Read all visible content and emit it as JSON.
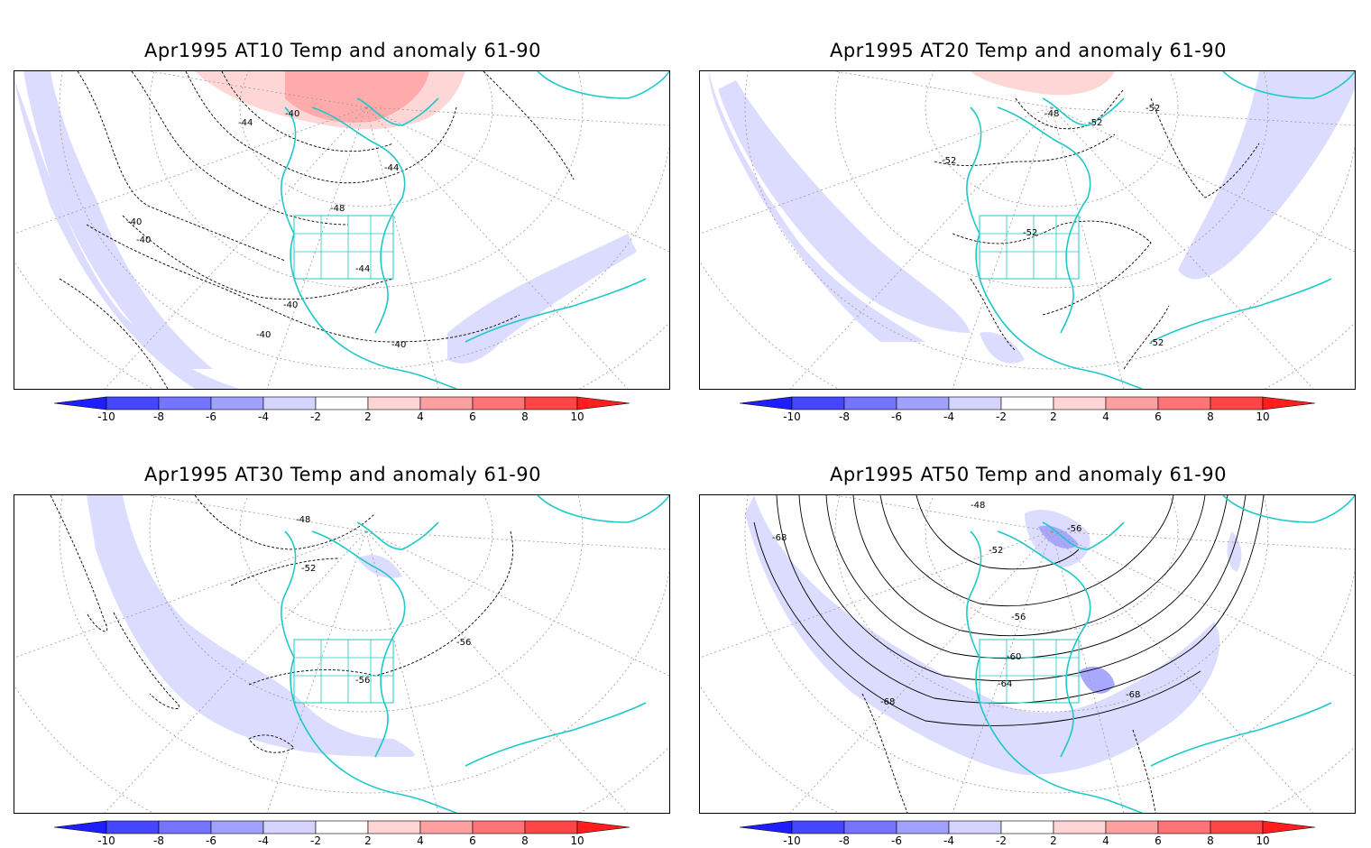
{
  "panels": [
    {
      "title": "Apr1995 AT10 Temp and anomaly 61-90",
      "contour_labels": [
        "-40",
        "-44",
        "-44",
        "-48",
        "-40",
        "-40",
        "-40",
        "-44",
        "-40",
        "-40"
      ],
      "highlight_color": "#ffc0c0"
    },
    {
      "title": "Apr1995 AT20 Temp and anomaly 61-90",
      "contour_labels": [
        "-48",
        "-52",
        "-52",
        "-52",
        "-52",
        "-52"
      ],
      "highlight_color": "#ffd6d6"
    },
    {
      "title": "Apr1995 AT30 Temp and anomaly 61-90",
      "contour_labels": [
        "-48",
        "-52",
        "-56",
        "-56"
      ],
      "highlight_color": "#d8d8ff"
    },
    {
      "title": "Apr1995 AT50 Temp and anomaly 61-90",
      "contour_labels": [
        "-48",
        "-56",
        "-52",
        "-68",
        "-56",
        "-60",
        "-64",
        "-68",
        "-68"
      ],
      "highlight_color": "#a8a8ff"
    }
  ],
  "colorbar": {
    "ticks": [
      "-10",
      "-8",
      "-6",
      "-4",
      "-2",
      "2",
      "4",
      "6",
      "8",
      "10"
    ],
    "colors": [
      "#1e1eff",
      "#4646ff",
      "#7474ff",
      "#a0a0ff",
      "#d4d4ff",
      "#ffffff",
      "#ffd4d4",
      "#ffa0a0",
      "#ff7474",
      "#ff4646",
      "#ff1e1e"
    ]
  },
  "colors": {
    "coastline": "#20c8c8",
    "contour": "#000000",
    "graticule": "#888888",
    "anomaly_cold_light": "#dcdcff",
    "anomaly_cold_medium": "#a8a8ff",
    "anomaly_warm_light": "#ffd6d6",
    "anomaly_warm_medium": "#ff9c9c"
  }
}
